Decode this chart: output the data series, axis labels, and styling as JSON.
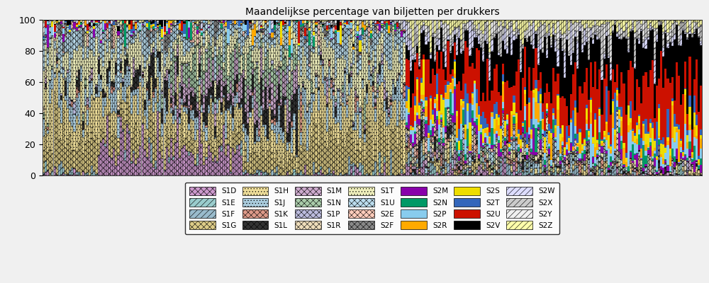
{
  "title": "Maandelijkse percentage van biljetten per drukkers",
  "series": [
    {
      "name": "S1D",
      "color": "#CC99CC",
      "hatch": "xxxx",
      "legend_row": 0,
      "legend_col": 0
    },
    {
      "name": "S1E",
      "color": "#99CCCC",
      "hatch": "////",
      "legend_row": 1,
      "legend_col": 0
    },
    {
      "name": "S1F",
      "color": "#99BBCC",
      "hatch": "////",
      "legend_row": 2,
      "legend_col": 0
    },
    {
      "name": "S1G",
      "color": "#DDCC88",
      "hatch": "xxxx",
      "legend_row": 3,
      "legend_col": 0
    },
    {
      "name": "S1H",
      "color": "#EEDD99",
      "hatch": "....",
      "legend_row": 0,
      "legend_col": 1
    },
    {
      "name": "S1J",
      "color": "#AACCDD",
      "hatch": "....",
      "legend_row": 1,
      "legend_col": 1
    },
    {
      "name": "S1K",
      "color": "#DD9988",
      "hatch": "xxxx",
      "legend_row": 2,
      "legend_col": 1
    },
    {
      "name": "S1L",
      "color": "#333333",
      "hatch": "xxxx",
      "legend_row": 3,
      "legend_col": 1
    },
    {
      "name": "S1M",
      "color": "#CCAACC",
      "hatch": "xxxx",
      "legend_row": 0,
      "legend_col": 2
    },
    {
      "name": "S1N",
      "color": "#AACCAA",
      "hatch": "xxxx",
      "legend_row": 1,
      "legend_col": 2
    },
    {
      "name": "S1P",
      "color": "#BBBBDD",
      "hatch": "xxxx",
      "legend_row": 2,
      "legend_col": 2
    },
    {
      "name": "S1R",
      "color": "#EEDDBB",
      "hatch": "xxxx",
      "legend_row": 3,
      "legend_col": 2
    },
    {
      "name": "S1T",
      "color": "#EEEEBB",
      "hatch": "....",
      "legend_row": 0,
      "legend_col": 3
    },
    {
      "name": "S1U",
      "color": "#BBDDEE",
      "hatch": "xxxx",
      "legend_row": 1,
      "legend_col": 3
    },
    {
      "name": "S2E",
      "color": "#FFCCBB",
      "hatch": "xxxx",
      "legend_row": 2,
      "legend_col": 3
    },
    {
      "name": "S2F",
      "color": "#888888",
      "hatch": "xxxx",
      "legend_row": 3,
      "legend_col": 3
    },
    {
      "name": "S2M",
      "color": "#8800AA",
      "hatch": "",
      "legend_row": 0,
      "legend_col": 4
    },
    {
      "name": "S2N",
      "color": "#009966",
      "hatch": "",
      "legend_row": 1,
      "legend_col": 4
    },
    {
      "name": "S2P",
      "color": "#88CCEE",
      "hatch": "",
      "legend_row": 2,
      "legend_col": 4
    },
    {
      "name": "S2R",
      "color": "#FFAA00",
      "hatch": "",
      "legend_row": 3,
      "legend_col": 4
    },
    {
      "name": "S2S",
      "color": "#EEDD00",
      "hatch": "",
      "legend_row": 0,
      "legend_col": 5
    },
    {
      "name": "S2T",
      "color": "#3366BB",
      "hatch": "",
      "legend_row": 1,
      "legend_col": 5
    },
    {
      "name": "S2U",
      "color": "#CC1100",
      "hatch": "",
      "legend_row": 2,
      "legend_col": 5
    },
    {
      "name": "S2V",
      "color": "#000000",
      "hatch": "",
      "legend_row": 3,
      "legend_col": 5
    },
    {
      "name": "S2W",
      "color": "#DDDDFF",
      "hatch": "////",
      "legend_row": 0,
      "legend_col": 6
    },
    {
      "name": "S2X",
      "color": "#CCCCCC",
      "hatch": "////",
      "legend_row": 1,
      "legend_col": 6
    },
    {
      "name": "S2Y",
      "color": "#F0F0F0",
      "hatch": "////",
      "legend_row": 2,
      "legend_col": 6
    },
    {
      "name": "S2Z",
      "color": "#FFFFAA",
      "hatch": "////",
      "legend_row": 3,
      "legend_col": 6
    }
  ],
  "n_bars": 300,
  "ylim": [
    0,
    100
  ],
  "seed": 12345,
  "transition_point": 0.55
}
